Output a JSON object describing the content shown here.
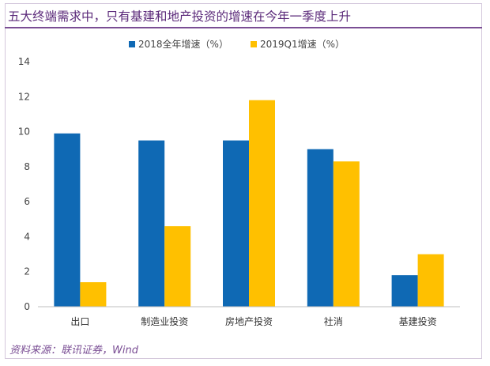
{
  "header": {
    "title": "五大终端需求中，只有基建和地产投资的增速在今年一季度上升"
  },
  "footer": {
    "source": "资料来源：联讯证券，Wind"
  },
  "colors": {
    "series1": "#0f69b4",
    "series2": "#ffc000",
    "axis": "#bfbfbf"
  },
  "chart_data": {
    "type": "bar",
    "title": "",
    "xlabel": "",
    "ylabel": "",
    "categories": [
      "出口",
      "制造业投资",
      "房地产投资",
      "社消",
      "基建投资"
    ],
    "series": [
      {
        "name": "2018全年增速（%）",
        "values": [
          9.9,
          9.5,
          9.5,
          9.0,
          1.8
        ]
      },
      {
        "name": "2019Q1增速（%）",
        "values": [
          1.4,
          4.6,
          11.8,
          8.3,
          3.0
        ]
      }
    ],
    "ylim": [
      0,
      14
    ],
    "yticks": [
      0,
      2,
      4,
      6,
      8,
      10,
      12,
      14
    ],
    "grid": false,
    "legend": "top"
  }
}
